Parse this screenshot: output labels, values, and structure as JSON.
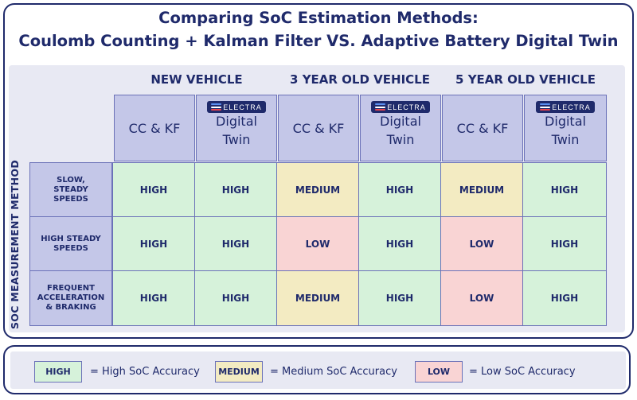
{
  "title": {
    "line1": "Comparing SoC Estimation Methods:",
    "line2": "Coulomb Counting + Kalman Filter VS. Adaptive Battery Digital Twin"
  },
  "brand": "ELECTRA",
  "side_label": "SOC MEASUREMENT METHOD",
  "groups": [
    "NEW VEHICLE",
    "3 YEAR OLD VEHICLE",
    "5 YEAR OLD VEHICLE"
  ],
  "method_labels": {
    "cc_kf": "CC & KF",
    "dt_line1": "Digital",
    "dt_line2": "Twin"
  },
  "rows": [
    {
      "line1": "SLOW,",
      "line2": "STEADY",
      "line3": "SPEEDS",
      "values": [
        "HIGH",
        "HIGH",
        "MEDIUM",
        "HIGH",
        "MEDIUM",
        "HIGH"
      ]
    },
    {
      "line1": "HIGH STEADY",
      "line2": "SPEEDS",
      "line3": "",
      "values": [
        "HIGH",
        "HIGH",
        "LOW",
        "HIGH",
        "LOW",
        "HIGH"
      ]
    },
    {
      "line1": "FREQUENT",
      "line2": "ACCELERATION",
      "line3": "& BRAKING",
      "values": [
        "HIGH",
        "HIGH",
        "MEDIUM",
        "HIGH",
        "LOW",
        "HIGH"
      ]
    }
  ],
  "legend": [
    {
      "chip": "HIGH",
      "text": "= High SoC Accuracy",
      "color": "#d6f2da"
    },
    {
      "chip": "MEDIUM",
      "text": "= Medium SoC Accuracy",
      "color": "#f3ebc2"
    },
    {
      "chip": "LOW",
      "text": "= Low SoC Accuracy",
      "color": "#f9d4d4"
    }
  ],
  "colors": {
    "navy": "#1f2a6b",
    "header_fill": "#c4c7e8",
    "grid_background": "#e8e9f3",
    "high": "#d6f2da",
    "medium": "#f3ebc2",
    "low": "#f9d4d4"
  }
}
